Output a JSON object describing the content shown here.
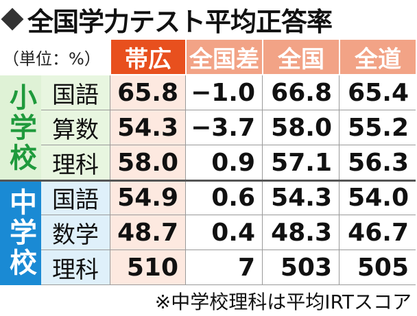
{
  "title": "全国学力テスト平均正答率",
  "unit": "（単位：%）",
  "columns": [
    "帯広",
    "全国差",
    "全国",
    "全道"
  ],
  "groups": [
    {
      "label": "小学校",
      "rows": [
        {
          "subject": "国語",
          "values": [
            "65.8",
            "−1.0",
            "66.8",
            "65.4"
          ]
        },
        {
          "subject": "算数",
          "values": [
            "54.3",
            "−3.7",
            "58.0",
            "55.2"
          ]
        },
        {
          "subject": "理科",
          "values": [
            "58.0",
            "0.9",
            "57.1",
            "56.3"
          ]
        }
      ]
    },
    {
      "label": "中学校",
      "rows": [
        {
          "subject": "国語",
          "values": [
            "54.9",
            "0.6",
            "54.3",
            "54.0"
          ]
        },
        {
          "subject": "数学",
          "values": [
            "48.7",
            "0.4",
            "48.3",
            "46.7"
          ]
        },
        {
          "subject": "理科",
          "values": [
            "510",
            "7",
            "503",
            "505"
          ]
        }
      ]
    }
  ],
  "footnote": "※中学校理科は平均IRTスコア"
}
